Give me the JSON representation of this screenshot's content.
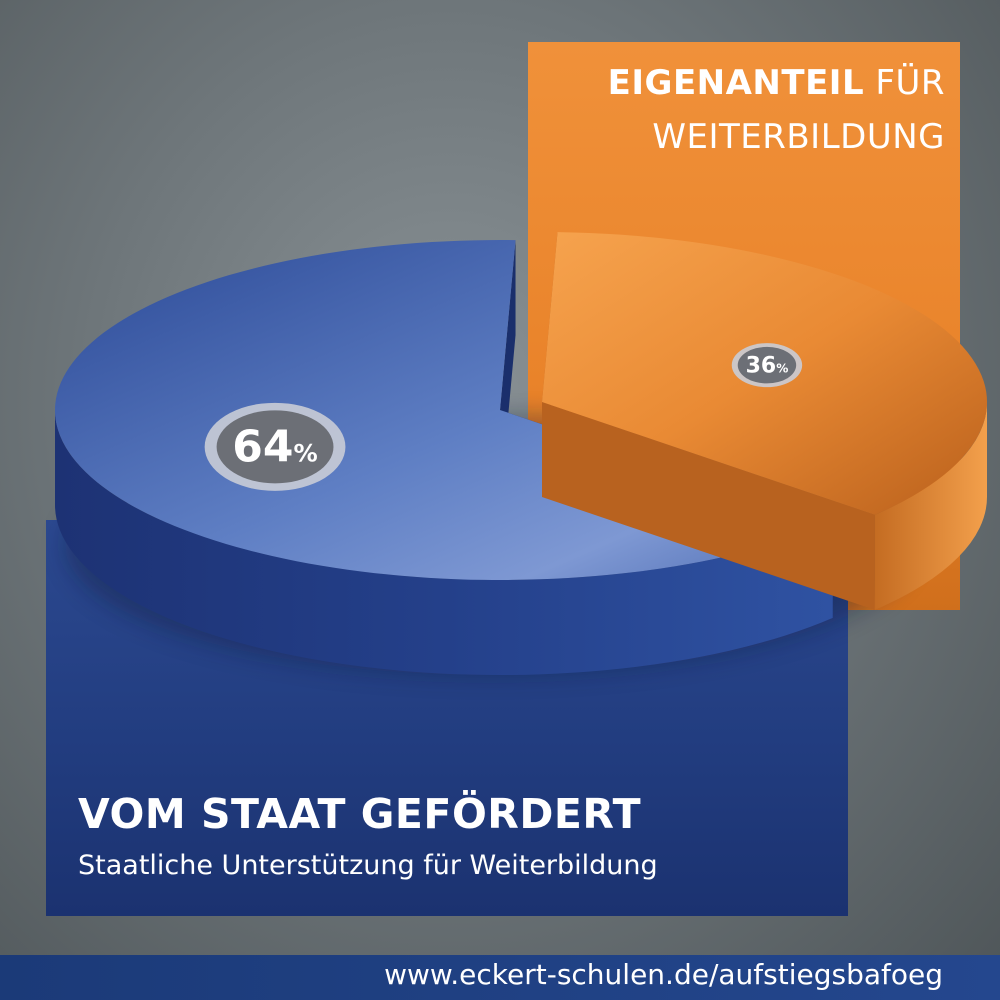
{
  "panels": {
    "own_share_title_bold": "EIGENANTEIL",
    "own_share_title_rest": " FÜR",
    "own_share_title_line2": "WEITERBILDUNG",
    "state_title": "VOM STAAT GEFÖRDERT",
    "state_subtitle": "Staatliche Unterstützung für Weiterbildung"
  },
  "footer": {
    "url": "www.eckert-schulen.de/aufstiegsbafoeg"
  },
  "colors": {
    "state": "#2a4a98",
    "own_share": "#ef8d35"
  },
  "chart_data": {
    "type": "pie",
    "categories": [
      "VOM STAAT GEFÖRDERT",
      "EIGENANTEIL FÜR WEITERBILDUNG"
    ],
    "values": [
      64,
      36
    ],
    "labels": [
      "64",
      "36"
    ],
    "unit": "%",
    "style": "3d-exploded"
  }
}
